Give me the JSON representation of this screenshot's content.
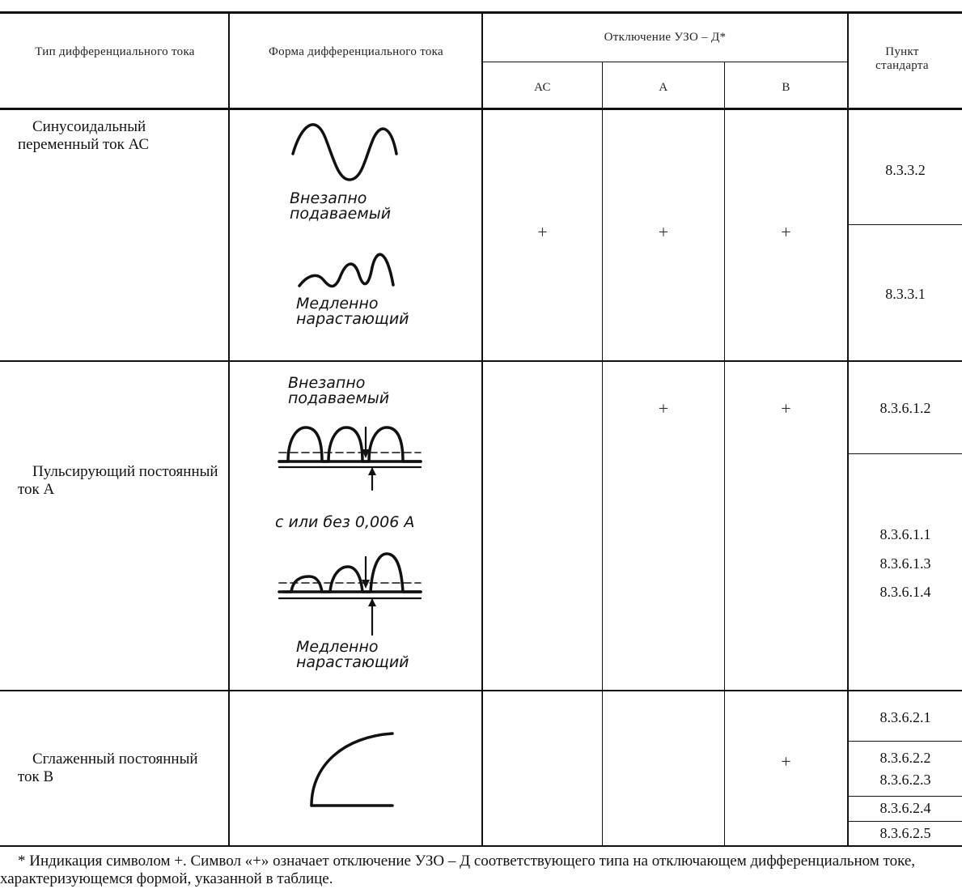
{
  "header": {
    "type_col": "Тип дифференциального тока",
    "form_col": "Форма дифференциального тока",
    "trip_group": "Отключение УЗО – Д*",
    "trip_ac": "АС",
    "trip_a": "А",
    "trip_b": "В",
    "clause_col": "Пункт стандарта"
  },
  "rows": [
    {
      "type": "Синусоидальный переменный ток АС",
      "ac": "+",
      "a": "+",
      "b": "+",
      "form_notes": [
        "Внезапно подаваемый",
        "Медленно нарастающий"
      ],
      "clauses": [
        "8.3.3.2",
        "8.3.3.1"
      ]
    },
    {
      "type": "Пульсирующий постоянный ток А",
      "ac": "",
      "a": "+",
      "b": "+",
      "form_notes": [
        "Внезапно подаваемый",
        "с или без 0,006 А",
        "Медленно нарастающий"
      ],
      "clauses": [
        "8.3.6.1.2",
        "8.3.6.1.1",
        "8.3.6.1.3",
        "8.3.6.1.4"
      ]
    },
    {
      "type": "Сглаженный постоянный ток В",
      "ac": "",
      "a": "",
      "b": "+",
      "form_notes": [],
      "clauses": [
        "8.3.6.2.1",
        "8.3.6.2.2",
        "8.3.6.2.3",
        "8.3.6.2.4",
        "8.3.6.2.5"
      ]
    }
  ],
  "footnote": "* Индикация символом +. Символ «+» означает отключение УЗО – Д соответствующего типа на отключающем дифференциальном токе, характеризующемся формой, указанной в таблице."
}
